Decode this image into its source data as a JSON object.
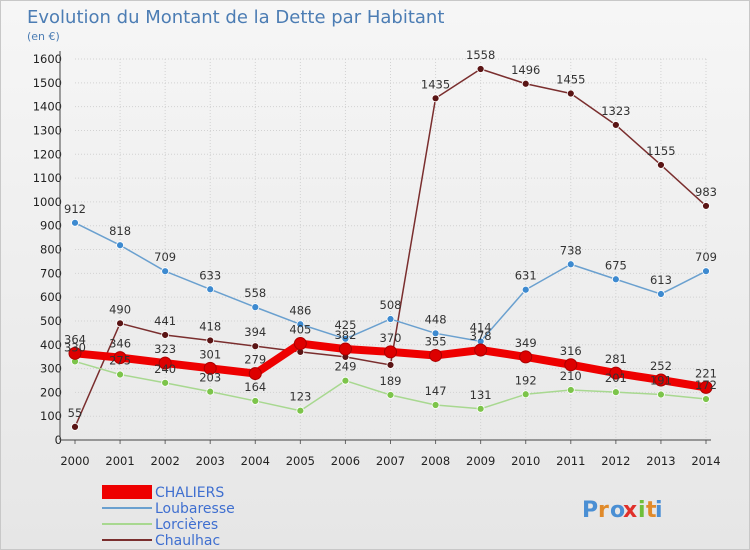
{
  "chart_data": {
    "type": "line",
    "title": "Evolution du Montant de la Dette par Habitant",
    "subtitle": "(en €)",
    "x": [
      "2000",
      "2001",
      "2002",
      "2003",
      "2004",
      "2005",
      "2006",
      "2007",
      "2008",
      "2009",
      "2010",
      "2011",
      "2012",
      "2013",
      "2014"
    ],
    "ylim": [
      0,
      1600
    ],
    "yticks": [
      0,
      100,
      200,
      300,
      400,
      500,
      600,
      700,
      800,
      900,
      1000,
      1100,
      1200,
      1300,
      1400,
      1500,
      1600
    ],
    "grid": true,
    "legend_position": "bottom-left",
    "series": [
      {
        "name": "Chaulhac",
        "color": "#7a2e2e",
        "marker": "#5a1414",
        "values": [
          55,
          490,
          441,
          418,
          394,
          370,
          349,
          315,
          1435,
          1558,
          1496,
          1455,
          1323,
          1155,
          983
        ],
        "labels": [
          "55",
          "490",
          "441",
          "418",
          "394",
          "",
          "",
          "",
          "1435",
          "1558",
          "1496",
          "1455",
          "1323",
          "1155",
          "983"
        ]
      },
      {
        "name": "Loubaresse",
        "color": "#6aa0cf",
        "marker": "#3d8ad0",
        "values": [
          912,
          818,
          709,
          633,
          558,
          486,
          425,
          508,
          448,
          414,
          631,
          738,
          675,
          613,
          709
        ],
        "labels": [
          "912",
          "818",
          "709",
          "633",
          "558",
          "486",
          "425",
          "508",
          "448",
          "414",
          "631",
          "738",
          "675",
          "613",
          "709"
        ]
      },
      {
        "name": "Lorcières",
        "color": "#a8d890",
        "marker": "#7cc44a",
        "values": [
          330,
          275,
          240,
          203,
          164,
          123,
          249,
          189,
          147,
          131,
          192,
          210,
          201,
          191,
          172
        ],
        "labels": [
          "330",
          "275",
          "240",
          "203",
          "164",
          "123",
          "249",
          "189",
          "147",
          "131",
          "192",
          "210",
          "201",
          "191",
          "172"
        ]
      },
      {
        "name": "CHALIERS",
        "color": "#ee0000",
        "marker": "#dd0000",
        "values": [
          364,
          346,
          323,
          301,
          279,
          405,
          382,
          370,
          355,
          378,
          349,
          316,
          281,
          252,
          221
        ],
        "labels": [
          "364",
          "346",
          "323",
          "301",
          "279",
          "405",
          "382",
          "370",
          "355",
          "378",
          "349",
          "316",
          "281",
          "252",
          "221"
        ]
      }
    ]
  },
  "legend": [
    {
      "label": "CHALIERS",
      "color": "#ee0000",
      "text_color": "#3f6fd0",
      "width": 14
    },
    {
      "label": "Loubaresse",
      "color": "#6aa0cf",
      "text_color": "#3f6fd0",
      "width": 2
    },
    {
      "label": "Lorcières",
      "color": "#a8d890",
      "text_color": "#3f6fd0",
      "width": 2
    },
    {
      "label": "Chaulhac",
      "color": "#7a2e2e",
      "text_color": "#3f6fd0",
      "width": 2
    }
  ],
  "brand": {
    "text": "Proxiti"
  }
}
